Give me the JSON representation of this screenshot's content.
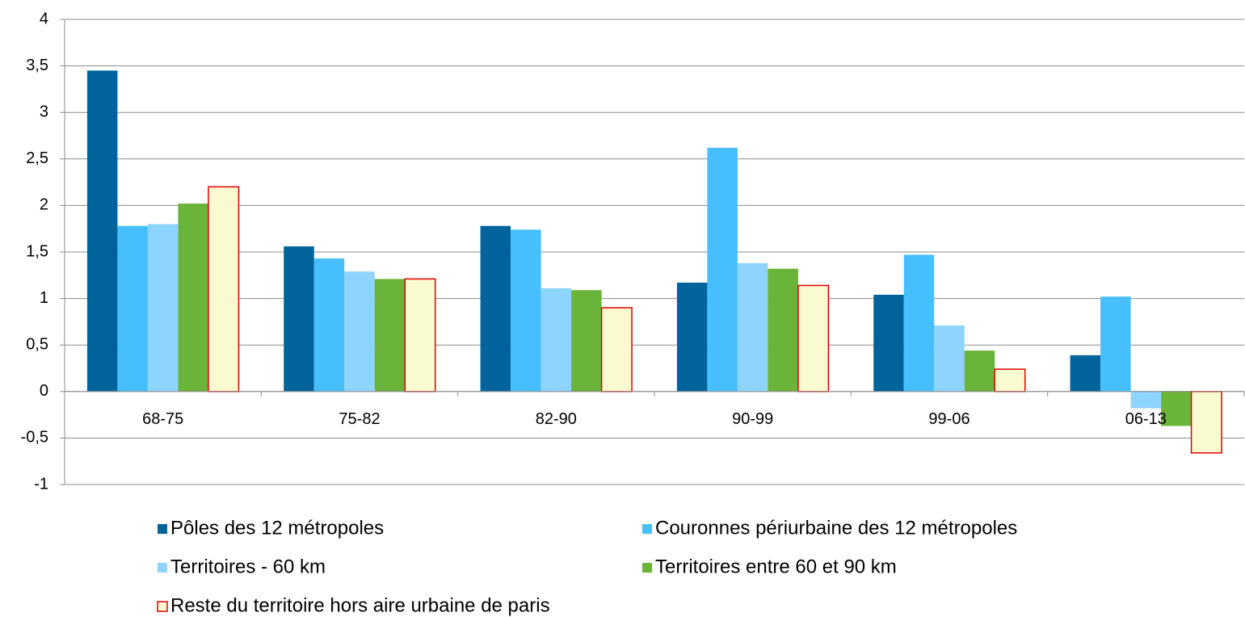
{
  "chart_data": {
    "type": "bar",
    "categories": [
      "68-75",
      "75-82",
      "82-90",
      "90-99",
      "99-06",
      "06-13"
    ],
    "series": [
      {
        "name": "Pôles des 12 métropoles",
        "color": "#00639c",
        "values": [
          3.45,
          1.56,
          1.78,
          1.17,
          1.04,
          0.39
        ]
      },
      {
        "name": "Couronnes périurbaine des 12 métropoles",
        "color": "#47bfff",
        "values": [
          1.78,
          1.43,
          1.74,
          2.62,
          1.47,
          1.02
        ]
      },
      {
        "name": "Territoires - 60 km",
        "color": "#8dd4ff",
        "values": [
          1.8,
          1.29,
          1.11,
          1.38,
          0.71,
          -0.18
        ]
      },
      {
        "name": "Territoires entre 60 et 90 km",
        "color": "#6bb43a",
        "values": [
          2.02,
          1.21,
          1.09,
          1.32,
          0.44,
          -0.37
        ]
      },
      {
        "name": "Reste du territoire hors aire urbaine de paris",
        "color": "#fafad0",
        "edgecolor": "#e00000",
        "values": [
          2.2,
          1.21,
          0.9,
          1.14,
          0.24,
          -0.66
        ]
      }
    ],
    "ylim": [
      -1,
      4
    ],
    "yticks": [
      -1,
      {
        "value": -0.5,
        "label": "-0,5"
      },
      0,
      {
        "value": 0.5,
        "label": "0,5"
      },
      1,
      {
        "value": 1.5,
        "label": "1,5"
      },
      2,
      {
        "value": 2.5,
        "label": "2,5"
      },
      3,
      {
        "value": 3.5,
        "label": "3,5"
      },
      4
    ],
    "grid": true
  }
}
